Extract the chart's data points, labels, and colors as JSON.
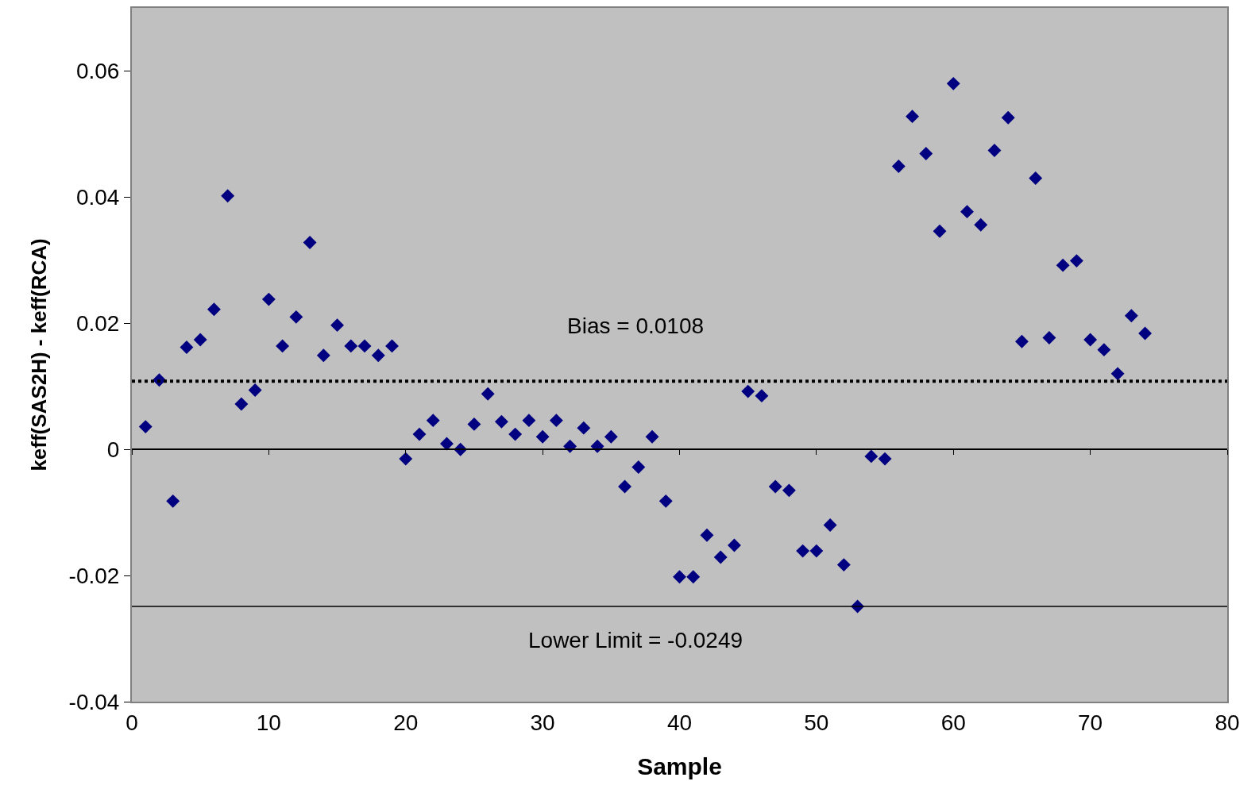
{
  "chart_data": {
    "type": "scatter",
    "xlabel": "Sample",
    "ylabel": "keff(SAS2H) - keff(RCA)",
    "x": [
      1,
      2,
      3,
      4,
      5,
      6,
      7,
      8,
      9,
      10,
      11,
      12,
      13,
      14,
      15,
      16,
      17,
      18,
      19,
      20,
      21,
      22,
      23,
      24,
      25,
      26,
      27,
      28,
      29,
      30,
      31,
      32,
      33,
      34,
      35,
      36,
      37,
      38,
      39,
      40,
      41,
      42,
      43,
      44,
      45,
      46,
      47,
      48,
      49,
      50,
      51,
      52,
      53,
      54,
      55,
      56,
      57,
      58,
      59,
      60,
      61,
      62,
      63,
      64,
      65,
      66,
      67,
      68,
      69,
      70,
      71,
      72,
      73,
      74
    ],
    "series": [
      {
        "color": "#000080",
        "values": [
          0.0036,
          0.011,
          -0.0082,
          0.0162,
          0.0174,
          0.0222,
          0.0402,
          0.0072,
          0.0094,
          0.0238,
          0.0164,
          0.021,
          0.0328,
          0.0149,
          0.0197,
          0.0164,
          0.0164,
          0.0149,
          0.0164,
          -0.0015,
          0.0024,
          0.0046,
          0.0009,
          0.0,
          0.004,
          0.0088,
          0.0044,
          0.0024,
          0.0046,
          0.002,
          0.0046,
          0.0005,
          0.0034,
          0.0005,
          0.002,
          -0.0059,
          -0.0028,
          0.002,
          -0.0082,
          -0.0202,
          -0.0202,
          -0.0136,
          -0.0171,
          -0.0152,
          0.0092,
          0.0085,
          -0.0059,
          -0.0065,
          -0.0161,
          -0.0161,
          -0.012,
          -0.0183,
          -0.0249,
          -0.0011,
          -0.0015,
          0.0449,
          0.0528,
          0.0469,
          0.0346,
          0.058,
          0.0377,
          0.0356,
          0.0474,
          0.0526,
          0.0171,
          0.043,
          0.0177,
          0.0292,
          0.0299,
          0.0174,
          0.0158,
          0.012,
          0.0212,
          0.0184
        ]
      }
    ],
    "xlim": [
      0,
      80
    ],
    "xticks": [
      0,
      10,
      20,
      30,
      40,
      50,
      60,
      70,
      80
    ],
    "ylim": [
      -0.04,
      0.07
    ],
    "yticks": [
      -0.04,
      -0.02,
      0,
      0.02,
      0.04,
      0.06
    ],
    "ref_lines": [
      {
        "axis": "y",
        "value": 0.0108,
        "label": "Bias = 0.0108",
        "color": "#000000",
        "line_style": "dotted"
      },
      {
        "axis": "y",
        "value": -0.0249,
        "label": "Lower Limit = -0.0249",
        "color": "#000000",
        "line_style": "solid"
      }
    ],
    "marker": "diamond"
  }
}
